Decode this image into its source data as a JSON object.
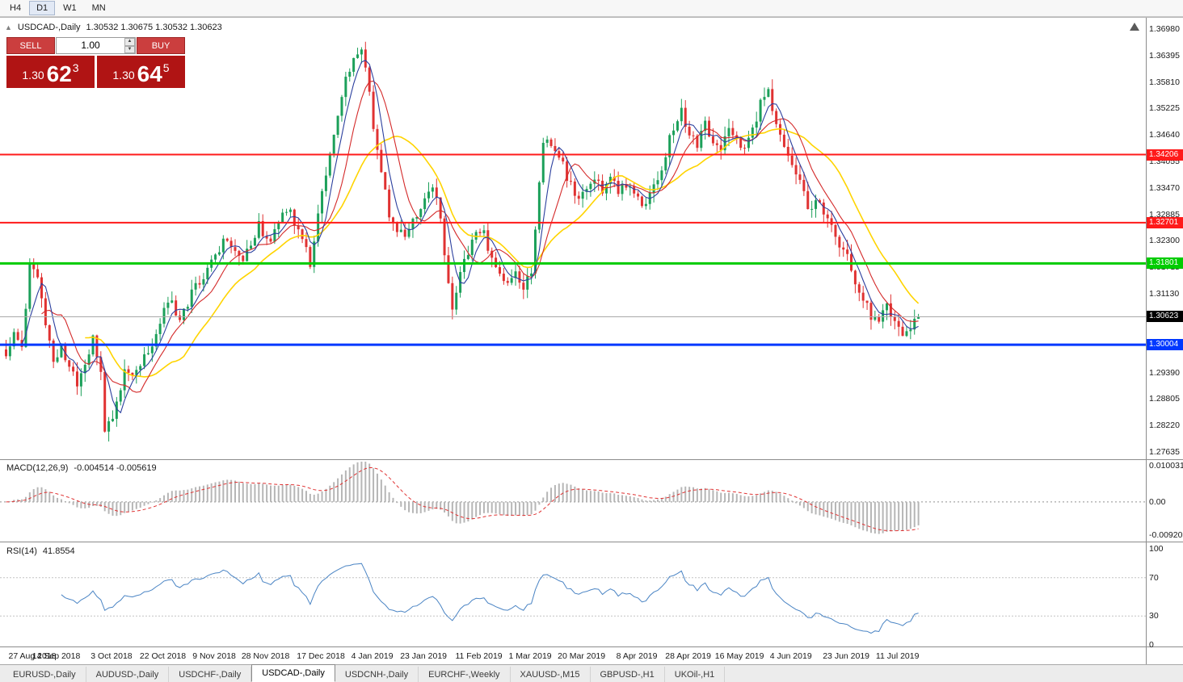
{
  "toolbar": {
    "timeframes": [
      {
        "label": "H4",
        "active": false
      },
      {
        "label": "D1",
        "active": true
      },
      {
        "label": "W1",
        "active": false
      },
      {
        "label": "MN",
        "active": false
      }
    ]
  },
  "chart": {
    "panel_toggle_icon": "▲",
    "symbol_text": "USDCAD-,Daily",
    "ohlc_text": "1.30532 1.30675 1.30532 1.30623"
  },
  "trade_widget": {
    "sell_label": "SELL",
    "buy_label": "BUY",
    "lot_value": "1.00",
    "sell_price": {
      "small": "1.30",
      "big": "62",
      "sup": "3"
    },
    "buy_price": {
      "small": "1.30",
      "big": "64",
      "sup": "5"
    }
  },
  "price_axis_labels": [
    "1.36980",
    "1.36395",
    "1.35810",
    "1.35225",
    "1.34640",
    "1.34055",
    "1.33470",
    "1.32885",
    "1.32300",
    "1.31715",
    "1.31130",
    "1.29390",
    "1.28805",
    "1.28220",
    "1.27635"
  ],
  "hlines": [
    {
      "value": 1.34206,
      "label": "1.34206",
      "color": "#ff1a1a",
      "thickness": 2,
      "name": "resistance-line-upper"
    },
    {
      "value": 1.32701,
      "label": "1.32701",
      "color": "#ff1a1a",
      "thickness": 2,
      "name": "resistance-line-lower"
    },
    {
      "value": 1.31801,
      "label": "1.31801",
      "color": "#00cc00",
      "thickness": 3,
      "name": "support-line-green"
    },
    {
      "value": 1.30004,
      "label": "1.30004",
      "color": "#0038ff",
      "thickness": 3,
      "name": "support-line-blue"
    }
  ],
  "current_price": {
    "value": 1.30623,
    "label": "1.30623"
  },
  "indicators": {
    "macd": {
      "title": "MACD(12,26,9)",
      "values": "-0.004514 -0.005619",
      "axis_labels": [
        {
          "v": 0.010031,
          "label": "0.010031"
        },
        {
          "v": 0,
          "label": "0.00"
        },
        {
          "v": -0.009203,
          "label": "-0.009203"
        }
      ]
    },
    "rsi": {
      "title": "RSI(14)",
      "value": "41.8554",
      "axis_labels": [
        {
          "v": 100,
          "label": "100"
        },
        {
          "v": 70,
          "label": "70"
        },
        {
          "v": 30,
          "label": "30"
        },
        {
          "v": 0,
          "label": "0"
        }
      ],
      "guide_levels": [
        70,
        30
      ]
    }
  },
  "date_axis": [
    "27 Aug 2018",
    "14 Sep 2018",
    "3 Oct 2018",
    "22 Oct 2018",
    "9 Nov 2018",
    "28 Nov 2018",
    "17 Dec 2018",
    "4 Jan 2019",
    "23 Jan 2019",
    "11 Feb 2019",
    "1 Mar 2019",
    "20 Mar 2019",
    "8 Apr 2019",
    "28 Apr 2019",
    "16 May 2019",
    "4 Jun 2019",
    "23 Jun 2019",
    "11 Jul 2019"
  ],
  "tabs": [
    {
      "label": "EURUSD-,Daily",
      "active": false
    },
    {
      "label": "AUDUSD-,Daily",
      "active": false
    },
    {
      "label": "USDCHF-,Daily",
      "active": false
    },
    {
      "label": "USDCAD-,Daily",
      "active": true
    },
    {
      "label": "USDCNH-,Daily",
      "active": false
    },
    {
      "label": "EURCHF-,Weekly",
      "active": false
    },
    {
      "label": "XAUUSD-,M15",
      "active": false
    },
    {
      "label": "GBPUSD-,H1",
      "active": false
    },
    {
      "label": "UKOil-,H1",
      "active": false
    }
  ],
  "chart_data": {
    "type": "candlestick",
    "symbol": "USDCAD",
    "timeframe": "Daily",
    "ohlc_current": {
      "open": 1.30532,
      "high": 1.30675,
      "low": 1.30532,
      "close": 1.30623
    },
    "bid": 1.30623,
    "ask": 1.30645,
    "price_range_visible": [
      1.27635,
      1.3698
    ],
    "num_candles": 232,
    "wiggle": 0.0012,
    "ma_periods": {
      "fast": 5,
      "mid": 10,
      "slow": 21
    },
    "macd_range": {
      "max": 0.010031,
      "min": -0.009203
    },
    "rsi_current": 41.8554,
    "macd_current": {
      "main": -0.004514,
      "signal": -0.005619
    },
    "colors": {
      "up": "#1ca05a",
      "down": "#e03232",
      "ma_fast": "#2b3f9e",
      "ma_mid": "#d42a2a",
      "ma_slow": "#ffd400",
      "macd_hist": "#b6b6b6",
      "macd_signal": "#e03232",
      "rsi": "#4a84c4",
      "current_price_line": "#aaaaaa"
    },
    "price_waypoints": [
      [
        0,
        1.2975
      ],
      [
        2,
        1.303
      ],
      [
        4,
        1.299
      ],
      [
        6,
        1.3185
      ],
      [
        8,
        1.315
      ],
      [
        10,
        1.3055
      ],
      [
        12,
        1.296
      ],
      [
        14,
        1.299
      ],
      [
        16,
        1.295
      ],
      [
        18,
        1.292
      ],
      [
        20,
        1.2965
      ],
      [
        22,
        1.301
      ],
      [
        24,
        1.293
      ],
      [
        25,
        1.2815
      ],
      [
        26,
        1.2825
      ],
      [
        28,
        1.2865
      ],
      [
        30,
        1.295
      ],
      [
        32,
        1.293
      ],
      [
        34,
        1.2955
      ],
      [
        36,
        1.2985
      ],
      [
        38,
        1.303
      ],
      [
        40,
        1.3075
      ],
      [
        42,
        1.3095
      ],
      [
        44,
        1.3055
      ],
      [
        46,
        1.309
      ],
      [
        48,
        1.3135
      ],
      [
        50,
        1.3155
      ],
      [
        52,
        1.3185
      ],
      [
        54,
        1.3215
      ],
      [
        56,
        1.3235
      ],
      [
        58,
        1.3205
      ],
      [
        60,
        1.3185
      ],
      [
        62,
        1.323
      ],
      [
        64,
        1.3265
      ],
      [
        66,
        1.3225
      ],
      [
        68,
        1.3255
      ],
      [
        70,
        1.329
      ],
      [
        72,
        1.33
      ],
      [
        74,
        1.325
      ],
      [
        76,
        1.321
      ],
      [
        77,
        1.318
      ],
      [
        78,
        1.324
      ],
      [
        80,
        1.333
      ],
      [
        82,
        1.342
      ],
      [
        84,
        1.35
      ],
      [
        86,
        1.359
      ],
      [
        88,
        1.3635
      ],
      [
        90,
        1.3645
      ],
      [
        92,
        1.357
      ],
      [
        93,
        1.348
      ],
      [
        95,
        1.339
      ],
      [
        97,
        1.329
      ],
      [
        99,
        1.3255
      ],
      [
        101,
        1.325
      ],
      [
        103,
        1.327
      ],
      [
        105,
        1.331
      ],
      [
        107,
        1.3345
      ],
      [
        109,
        1.333
      ],
      [
        110,
        1.329
      ],
      [
        111,
        1.32
      ],
      [
        113,
        1.3075
      ],
      [
        115,
        1.315
      ],
      [
        117,
        1.321
      ],
      [
        119,
        1.324
      ],
      [
        121,
        1.3245
      ],
      [
        123,
        1.3195
      ],
      [
        125,
        1.316
      ],
      [
        127,
        1.3135
      ],
      [
        129,
        1.317
      ],
      [
        131,
        1.3125
      ],
      [
        133,
        1.316
      ],
      [
        134,
        1.326
      ],
      [
        136,
        1.3435
      ],
      [
        137,
        1.3455
      ],
      [
        139,
        1.3425
      ],
      [
        141,
        1.3395
      ],
      [
        143,
        1.335
      ],
      [
        145,
        1.333
      ],
      [
        147,
        1.3345
      ],
      [
        149,
        1.3375
      ],
      [
        151,
        1.3345
      ],
      [
        153,
        1.3365
      ],
      [
        155,
        1.3345
      ],
      [
        157,
        1.3355
      ],
      [
        159,
        1.3345
      ],
      [
        161,
        1.331
      ],
      [
        163,
        1.333
      ],
      [
        165,
        1.3365
      ],
      [
        167,
        1.3425
      ],
      [
        169,
        1.3485
      ],
      [
        171,
        1.3515
      ],
      [
        173,
        1.3465
      ],
      [
        175,
        1.3445
      ],
      [
        177,
        1.3485
      ],
      [
        179,
        1.3445
      ],
      [
        181,
        1.3425
      ],
      [
        183,
        1.3485
      ],
      [
        185,
        1.345
      ],
      [
        187,
        1.3435
      ],
      [
        189,
        1.3475
      ],
      [
        191,
        1.3535
      ],
      [
        193,
        1.3555
      ],
      [
        195,
        1.3495
      ],
      [
        197,
        1.3445
      ],
      [
        199,
        1.3395
      ],
      [
        201,
        1.3365
      ],
      [
        203,
        1.3295
      ],
      [
        205,
        1.3325
      ],
      [
        207,
        1.3285
      ],
      [
        209,
        1.3255
      ],
      [
        211,
        1.3205
      ],
      [
        213,
        1.3195
      ],
      [
        215,
        1.3135
      ],
      [
        217,
        1.31
      ],
      [
        219,
        1.3065
      ],
      [
        221,
        1.3045
      ],
      [
        223,
        1.3085
      ],
      [
        225,
        1.3055
      ],
      [
        227,
        1.302
      ],
      [
        229,
        1.304
      ],
      [
        231,
        1.30623
      ]
    ]
  }
}
